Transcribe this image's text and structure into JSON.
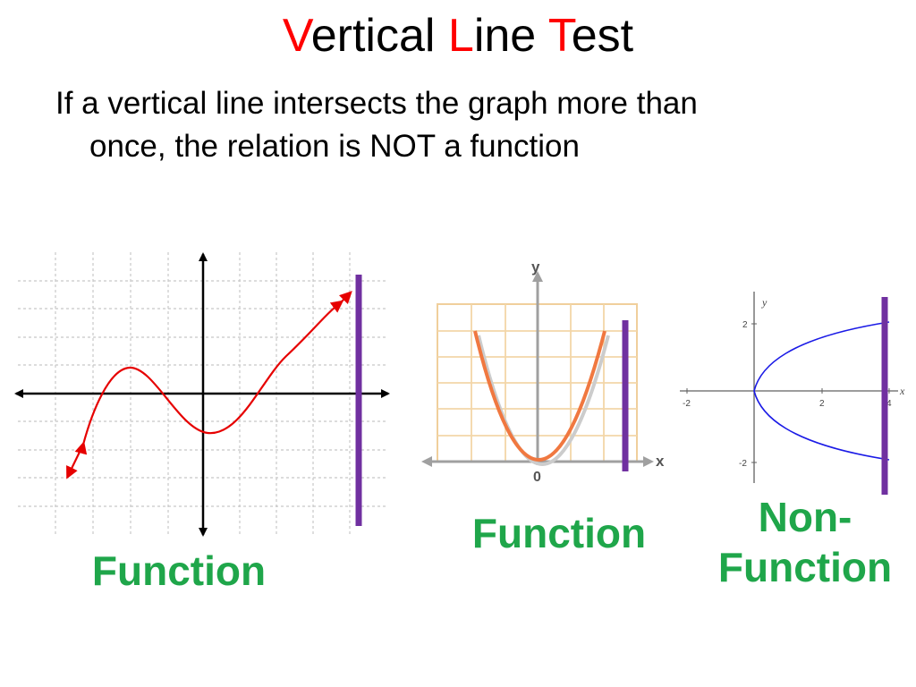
{
  "title": {
    "parts": [
      {
        "text": "V",
        "highlight": true
      },
      {
        "text": "ertical ",
        "highlight": false
      },
      {
        "text": "L",
        "highlight": true
      },
      {
        "text": "ine ",
        "highlight": false
      },
      {
        "text": "T",
        "highlight": true
      },
      {
        "text": "est",
        "highlight": false
      }
    ]
  },
  "subtitle": {
    "line1": "If a vertical line intersects the graph more than",
    "line2": "once, the relation is NOT a function"
  },
  "graph2": {
    "y_label": "y",
    "x_label": "x",
    "origin_label": "0"
  },
  "graph3": {
    "y_label": "y",
    "x_label": "x",
    "y_tick_2": "2",
    "y_tick_neg2": "-2",
    "x_tick_neg2": "-2",
    "x_tick_2": "2",
    "x_tick_4": "4"
  },
  "captions": {
    "left": "Function",
    "middle": "Function",
    "right_line1": "Non-",
    "right_line2": "Function"
  },
  "colors": {
    "accent_red": "#ff0000",
    "caption_green": "#1fa64a",
    "vertical_line": "#7030a0",
    "curve_red": "#e60000",
    "curve_orange": "#f07840",
    "curve_blue": "#1a1ae6",
    "grid_orange": "#f3d6a8"
  }
}
